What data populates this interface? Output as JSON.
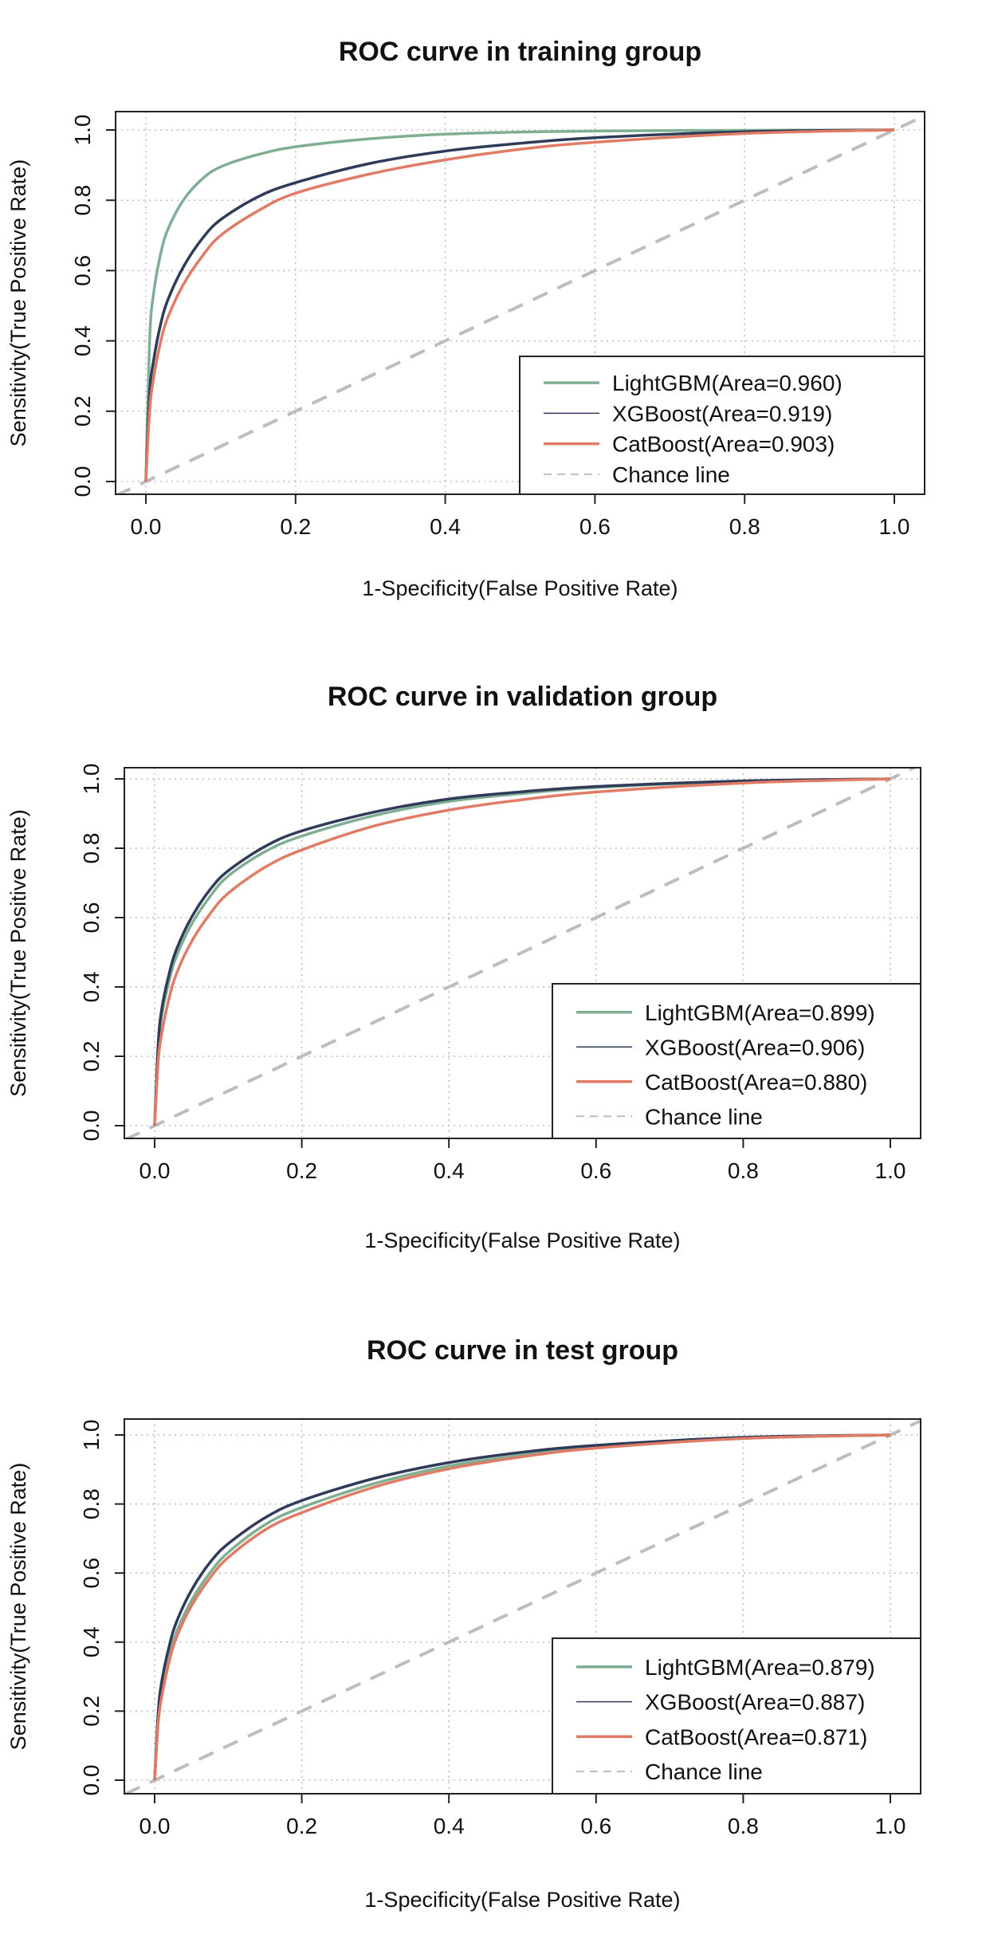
{
  "chart_data": [
    {
      "type": "line",
      "title": "ROC curve in training group",
      "xlabel": "1-Specificity(False Positive Rate)",
      "ylabel": "Sensitivity(True Positive Rate)",
      "xlim": [
        0,
        1
      ],
      "ylim": [
        0,
        1
      ],
      "x_ticks": [
        "0.0",
        "0.2",
        "0.4",
        "0.6",
        "0.8",
        "1.0"
      ],
      "y_ticks": [
        "0.0",
        "0.2",
        "0.4",
        "0.6",
        "0.8",
        "1.0"
      ],
      "grid": true,
      "legend_position": "bottom-right",
      "series": [
        {
          "name": "LightGBM(Area=0.960)",
          "color": "#7fae92",
          "line_style": "solid",
          "x": [
            0,
            0.005,
            0.01,
            0.02,
            0.03,
            0.05,
            0.075,
            0.1,
            0.15,
            0.2,
            0.3,
            0.4,
            0.5,
            0.6,
            0.8,
            1.0
          ],
          "y": [
            0,
            0.4,
            0.53,
            0.65,
            0.72,
            0.8,
            0.86,
            0.895,
            0.93,
            0.952,
            0.975,
            0.988,
            0.994,
            0.997,
            0.999,
            1.0
          ]
        },
        {
          "name": "XGBoost(Area=0.919)",
          "color": "#2f3b58",
          "line_style": "solid",
          "x": [
            0,
            0.005,
            0.01,
            0.02,
            0.03,
            0.05,
            0.075,
            0.1,
            0.15,
            0.2,
            0.3,
            0.4,
            0.5,
            0.6,
            0.8,
            1.0
          ],
          "y": [
            0,
            0.25,
            0.34,
            0.45,
            0.52,
            0.61,
            0.69,
            0.745,
            0.81,
            0.85,
            0.905,
            0.94,
            0.962,
            0.978,
            0.995,
            1.0
          ]
        },
        {
          "name": "CatBoost(Area=0.903)",
          "color": "#e07b65",
          "line_style": "solid",
          "x": [
            0,
            0.005,
            0.01,
            0.02,
            0.03,
            0.05,
            0.075,
            0.1,
            0.15,
            0.2,
            0.3,
            0.4,
            0.5,
            0.6,
            0.8,
            1.0
          ],
          "y": [
            0,
            0.2,
            0.29,
            0.4,
            0.47,
            0.56,
            0.64,
            0.7,
            0.77,
            0.82,
            0.875,
            0.915,
            0.945,
            0.965,
            0.99,
            1.0
          ]
        },
        {
          "name": "Chance line",
          "color": "#bdbdbd",
          "line_style": "dashed",
          "x": [
            -0.04,
            1.04
          ],
          "y": [
            -0.04,
            1.04
          ]
        }
      ]
    },
    {
      "type": "line",
      "title": "ROC curve in validation group",
      "xlabel": "1-Specificity(False Positive Rate)",
      "ylabel": "Sensitivity(True Positive Rate)",
      "xlim": [
        0,
        1
      ],
      "ylim": [
        0,
        1
      ],
      "x_ticks": [
        "0.0",
        "0.2",
        "0.4",
        "0.6",
        "0.8",
        "1.0"
      ],
      "y_ticks": [
        "0.0",
        "0.2",
        "0.4",
        "0.6",
        "0.8",
        "1.0"
      ],
      "grid": true,
      "legend_position": "bottom-right",
      "series": [
        {
          "name": "LightGBM(Area=0.899)",
          "color": "#7fae92",
          "line_style": "solid",
          "x": [
            0,
            0.005,
            0.01,
            0.02,
            0.03,
            0.05,
            0.075,
            0.1,
            0.15,
            0.2,
            0.3,
            0.4,
            0.5,
            0.6,
            0.8,
            1.0
          ],
          "y": [
            0,
            0.22,
            0.32,
            0.42,
            0.49,
            0.58,
            0.66,
            0.72,
            0.79,
            0.835,
            0.895,
            0.935,
            0.958,
            0.975,
            0.993,
            1.0
          ]
        },
        {
          "name": "XGBoost(Area=0.906)",
          "color": "#2f3b58",
          "line_style": "solid",
          "x": [
            0,
            0.005,
            0.01,
            0.02,
            0.03,
            0.05,
            0.075,
            0.1,
            0.15,
            0.2,
            0.3,
            0.4,
            0.5,
            0.6,
            0.8,
            1.0
          ],
          "y": [
            0,
            0.24,
            0.34,
            0.44,
            0.51,
            0.6,
            0.68,
            0.735,
            0.805,
            0.85,
            0.905,
            0.942,
            0.963,
            0.978,
            0.994,
            1.0
          ]
        },
        {
          "name": "CatBoost(Area=0.880)",
          "color": "#e07b65",
          "line_style": "solid",
          "x": [
            0,
            0.005,
            0.01,
            0.02,
            0.03,
            0.05,
            0.075,
            0.1,
            0.15,
            0.2,
            0.3,
            0.4,
            0.5,
            0.6,
            0.8,
            1.0
          ],
          "y": [
            0,
            0.19,
            0.27,
            0.37,
            0.44,
            0.53,
            0.61,
            0.67,
            0.745,
            0.795,
            0.865,
            0.91,
            0.94,
            0.962,
            0.988,
            1.0
          ]
        },
        {
          "name": "Chance line",
          "color": "#bdbdbd",
          "line_style": "dashed",
          "x": [
            -0.04,
            1.04
          ],
          "y": [
            -0.04,
            1.04
          ]
        }
      ]
    },
    {
      "type": "line",
      "title": "ROC curve in test group",
      "xlabel": "1-Specificity(False Positive Rate)",
      "ylabel": "Sensitivity(True Positive Rate)",
      "xlim": [
        0,
        1
      ],
      "ylim": [
        0,
        1
      ],
      "x_ticks": [
        "0.0",
        "0.2",
        "0.4",
        "0.6",
        "0.8",
        "1.0"
      ],
      "y_ticks": [
        "0.0",
        "0.2",
        "0.4",
        "0.6",
        "0.8",
        "1.0"
      ],
      "grid": true,
      "legend_position": "bottom-right",
      "series": [
        {
          "name": "LightGBM(Area=0.879)",
          "color": "#7fae92",
          "line_style": "solid",
          "x": [
            0,
            0.005,
            0.01,
            0.02,
            0.03,
            0.05,
            0.075,
            0.1,
            0.15,
            0.2,
            0.3,
            0.4,
            0.5,
            0.6,
            0.8,
            1.0
          ],
          "y": [
            0,
            0.18,
            0.26,
            0.36,
            0.43,
            0.52,
            0.6,
            0.66,
            0.74,
            0.79,
            0.86,
            0.91,
            0.942,
            0.965,
            0.99,
            1.0
          ]
        },
        {
          "name": "XGBoost(Area=0.887)",
          "color": "#2f3b58",
          "line_style": "solid",
          "x": [
            0,
            0.005,
            0.01,
            0.02,
            0.03,
            0.05,
            0.075,
            0.1,
            0.15,
            0.2,
            0.3,
            0.4,
            0.5,
            0.6,
            0.8,
            1.0
          ],
          "y": [
            0,
            0.2,
            0.29,
            0.39,
            0.46,
            0.55,
            0.63,
            0.685,
            0.76,
            0.81,
            0.875,
            0.92,
            0.95,
            0.97,
            0.993,
            1.0
          ]
        },
        {
          "name": "CatBoost(Area=0.871)",
          "color": "#e07b65",
          "line_style": "solid",
          "x": [
            0,
            0.005,
            0.01,
            0.02,
            0.03,
            0.05,
            0.075,
            0.1,
            0.15,
            0.2,
            0.3,
            0.4,
            0.5,
            0.6,
            0.8,
            1.0
          ],
          "y": [
            0,
            0.17,
            0.245,
            0.345,
            0.415,
            0.505,
            0.585,
            0.645,
            0.725,
            0.775,
            0.85,
            0.902,
            0.937,
            0.962,
            0.99,
            1.0
          ]
        },
        {
          "name": "Chance line",
          "color": "#bdbdbd",
          "line_style": "dashed",
          "x": [
            -0.04,
            1.04
          ],
          "y": [
            -0.04,
            1.04
          ]
        }
      ]
    }
  ]
}
